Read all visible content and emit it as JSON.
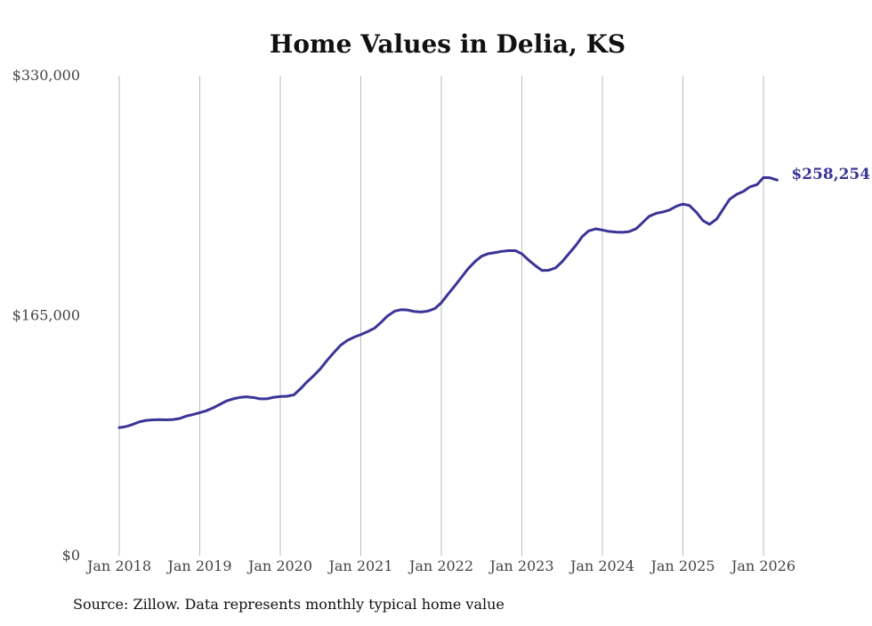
{
  "chart_data": {
    "type": "line",
    "title": "Home Values in Delia, KS",
    "xlabel": "",
    "ylabel": "",
    "ylim": [
      0,
      330000
    ],
    "y_ticks": [
      {
        "value": 0,
        "label": "$0"
      },
      {
        "value": 165000,
        "label": "$165,000"
      },
      {
        "value": 330000,
        "label": "$330,000"
      }
    ],
    "x_ticks": [
      {
        "value": 2018.0,
        "label": "Jan 2018"
      },
      {
        "value": 2019.0,
        "label": "Jan 2019"
      },
      {
        "value": 2020.0,
        "label": "Jan 2020"
      },
      {
        "value": 2021.0,
        "label": "Jan 2021"
      },
      {
        "value": 2022.0,
        "label": "Jan 2022"
      },
      {
        "value": 2023.0,
        "label": "Jan 2023"
      },
      {
        "value": 2024.0,
        "label": "Jan 2024"
      },
      {
        "value": 2025.0,
        "label": "Jan 2025"
      },
      {
        "value": 2026.0,
        "label": "Jan 2026"
      }
    ],
    "xlim": [
      2018.0,
      2026.17
    ],
    "grid": "vertical",
    "series": [
      {
        "name": "Typical home value",
        "color": "#3b3497",
        "end_label": "$258,254",
        "x": [
          2018.0,
          2018.08,
          2018.17,
          2018.25,
          2018.33,
          2018.42,
          2018.5,
          2018.58,
          2018.67,
          2018.75,
          2018.83,
          2018.92,
          2019.0,
          2019.08,
          2019.17,
          2019.25,
          2019.33,
          2019.42,
          2019.5,
          2019.58,
          2019.67,
          2019.75,
          2019.83,
          2019.92,
          2020.0,
          2020.08,
          2020.17,
          2020.25,
          2020.33,
          2020.42,
          2020.5,
          2020.58,
          2020.67,
          2020.75,
          2020.83,
          2020.92,
          2021.0,
          2021.08,
          2021.17,
          2021.25,
          2021.33,
          2021.42,
          2021.5,
          2021.58,
          2021.67,
          2021.75,
          2021.83,
          2021.92,
          2022.0,
          2022.08,
          2022.17,
          2022.25,
          2022.33,
          2022.42,
          2022.5,
          2022.58,
          2022.67,
          2022.75,
          2022.83,
          2022.92,
          2023.0,
          2023.08,
          2023.17,
          2023.25,
          2023.33,
          2023.42,
          2023.5,
          2023.58,
          2023.67,
          2023.75,
          2023.83,
          2023.92,
          2024.0,
          2024.08,
          2024.17,
          2024.25,
          2024.33,
          2024.42,
          2024.5,
          2024.58,
          2024.67,
          2024.75,
          2024.83,
          2024.92,
          2025.0,
          2025.08,
          2025.17,
          2025.25,
          2025.33,
          2025.42,
          2025.5,
          2025.58,
          2025.67,
          2025.75,
          2025.83,
          2025.92,
          2026.0,
          2026.08,
          2026.17
        ],
        "values": [
          88000,
          88700,
          90300,
          92000,
          93000,
          93400,
          93500,
          93400,
          93600,
          94300,
          95900,
          97100,
          98300,
          99600,
          101700,
          104000,
          106300,
          107900,
          108800,
          109200,
          108700,
          107800,
          107800,
          108900,
          109400,
          109600,
          110600,
          114700,
          119400,
          124000,
          128600,
          134200,
          139900,
          144700,
          147900,
          150300,
          152000,
          153900,
          156400,
          160300,
          164700,
          168100,
          169100,
          168900,
          167800,
          167500,
          168100,
          169900,
          173900,
          179600,
          185700,
          191400,
          197100,
          202300,
          205900,
          207600,
          208400,
          209200,
          209700,
          209700,
          207500,
          203400,
          199300,
          196100,
          196200,
          197900,
          202100,
          207400,
          213300,
          219400,
          223300,
          224700,
          223900,
          222900,
          222500,
          222300,
          222800,
          224800,
          229000,
          233300,
          235400,
          236300,
          237600,
          240300,
          241700,
          240800,
          235900,
          230300,
          227800,
          231500,
          238300,
          245000,
          248500,
          250400,
          253500,
          255100,
          260000,
          259800,
          258254
        ]
      }
    ],
    "source": "Source: Zillow. Data represents monthly typical home value"
  }
}
